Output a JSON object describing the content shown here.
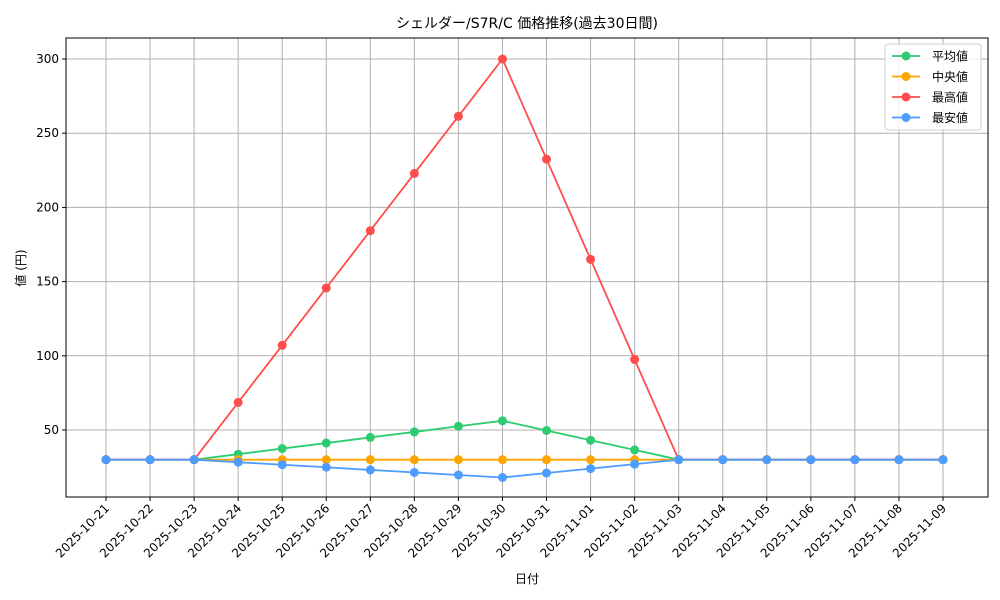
{
  "chart_data": {
    "type": "line",
    "title": "シェルダー/S7R/C 価格推移(過去30日間)",
    "xlabel": "日付",
    "ylabel": "値 (円)",
    "x": [
      "2025-10-21",
      "2025-10-22",
      "2025-10-23",
      "2025-10-24",
      "2025-10-25",
      "2025-10-26",
      "2025-10-27",
      "2025-10-28",
      "2025-10-29",
      "2025-10-30",
      "2025-10-31",
      "2025-11-01",
      "2025-11-02",
      "2025-11-03",
      "2025-11-04",
      "2025-11-05",
      "2025-11-06",
      "2025-11-07",
      "2025-11-08",
      "2025-11-09"
    ],
    "yticks": [
      50,
      100,
      150,
      200,
      250,
      300
    ],
    "ylim": [
      11.5,
      314
    ],
    "grid": true,
    "legend_position": "upper right",
    "series": [
      {
        "name": "平均値",
        "color": "#2ecc71",
        "values": [
          30,
          30,
          30,
          33.7,
          37.5,
          41.2,
          45,
          48.7,
          52.5,
          56.2,
          49.7,
          43.1,
          36.6,
          30,
          30,
          30,
          30,
          30,
          30,
          30
        ]
      },
      {
        "name": "中央値",
        "color": "#ffa500",
        "values": [
          30,
          30,
          30,
          30,
          30,
          30,
          30,
          30,
          30,
          30,
          30,
          30,
          30,
          30,
          30,
          30,
          30,
          30,
          30,
          30
        ]
      },
      {
        "name": "最高値",
        "color": "#ff4d4d",
        "values": [
          30,
          30,
          30,
          68.6,
          107.1,
          145.7,
          184.3,
          222.9,
          261.4,
          300,
          232.5,
          165,
          97.5,
          30,
          30,
          30,
          30,
          30,
          30,
          30
        ]
      },
      {
        "name": "最安値",
        "color": "#4d9cff",
        "values": [
          30,
          30,
          30,
          28.3,
          26.6,
          24.9,
          23.1,
          21.4,
          19.7,
          18,
          21,
          24,
          27,
          30,
          30,
          30,
          30,
          30,
          30,
          30
        ]
      }
    ]
  }
}
